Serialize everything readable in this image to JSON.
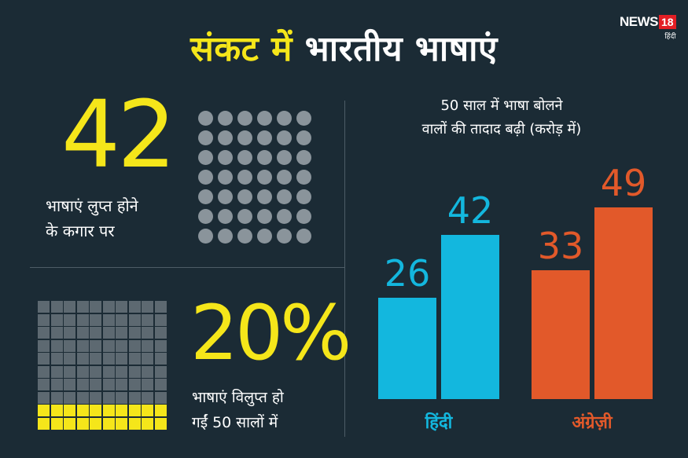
{
  "header": {
    "title_part1": "संकट में",
    "title_part2": "भारतीय भाषाएं"
  },
  "logo": {
    "brand": "NEWS",
    "number": "18",
    "sub": "हिंदी"
  },
  "stat1": {
    "value": "42",
    "label_line1": "भाषाएं लुप्त होने",
    "label_line2": "के कगार पर"
  },
  "stat2": {
    "value": "20%",
    "label_line1": "भाषाएं विलुप्त हो",
    "label_line2": "गईं 50 सालों में"
  },
  "dots_grid": {
    "total": 42,
    "color": "#8a949b"
  },
  "squares_grid": {
    "total": 100,
    "highlighted": 20,
    "base_color": "#5d6971",
    "highlight_color": "#f5e61a"
  },
  "chart_data": {
    "type": "bar",
    "title_line1": "50 साल में भाषा बोलने",
    "title_line2": "वालों की तादाद बढ़ी (करोड़ में)",
    "categories": [
      "हिंदी",
      "अंग्रेज़ी"
    ],
    "groups": [
      {
        "category": "हिंदी",
        "color": "#13b7de",
        "values": [
          26,
          42
        ]
      },
      {
        "category": "अंग्रेज़ी",
        "color": "#e2592a",
        "values": [
          33,
          49
        ]
      }
    ]
  },
  "colors": {
    "background": "#1b2b35",
    "accent_yellow": "#f5e61a",
    "hindi_blue": "#13b7de",
    "english_orange": "#e2592a"
  }
}
